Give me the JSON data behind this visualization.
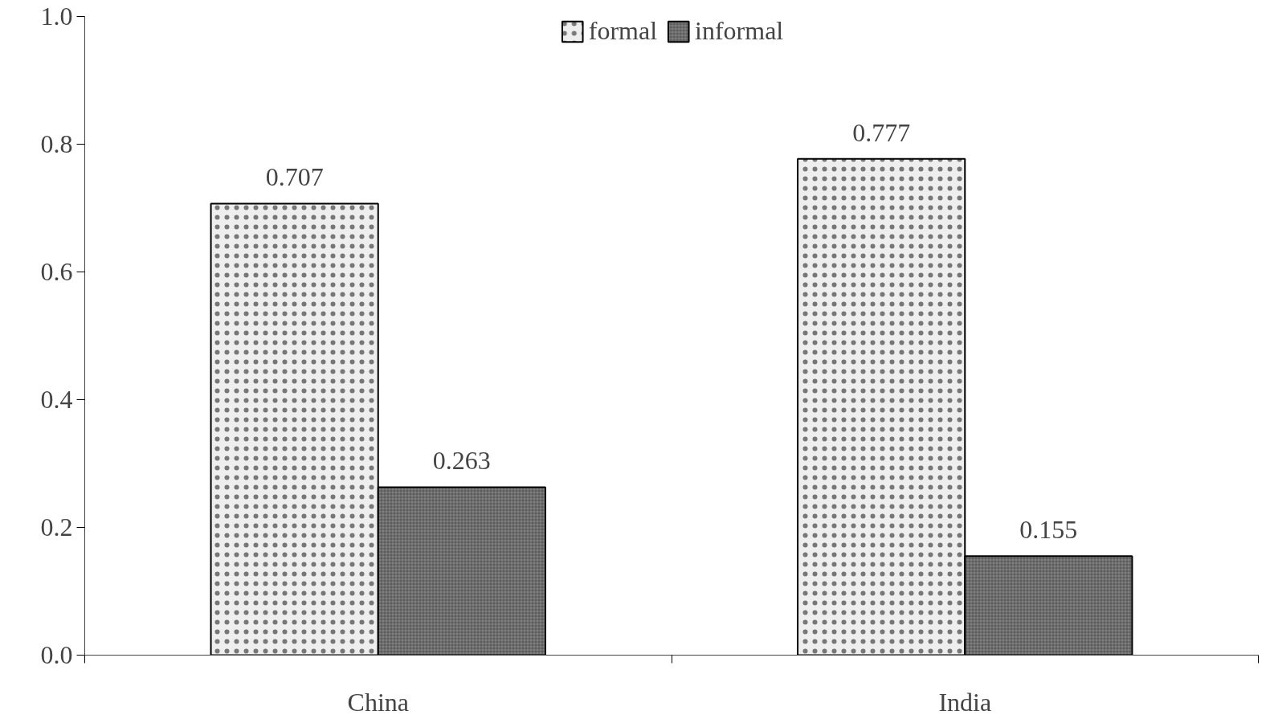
{
  "chart_data": {
    "type": "bar",
    "categories": [
      "China",
      "India"
    ],
    "series": [
      {
        "name": "formal",
        "color": "#eeeeee",
        "values": [
          0.707,
          0.777
        ]
      },
      {
        "name": "informal",
        "color": "#808080",
        "values": [
          0.263,
          0.155
        ]
      }
    ],
    "ylim": [
      0,
      1
    ],
    "yticks": [
      {
        "value": 0,
        "label": "0.0"
      },
      0.2,
      0.4,
      0.6,
      0.8,
      {
        "value": 1,
        "label": "1.0"
      }
    ],
    "data_labels": true,
    "legend": "top",
    "grid": false
  }
}
